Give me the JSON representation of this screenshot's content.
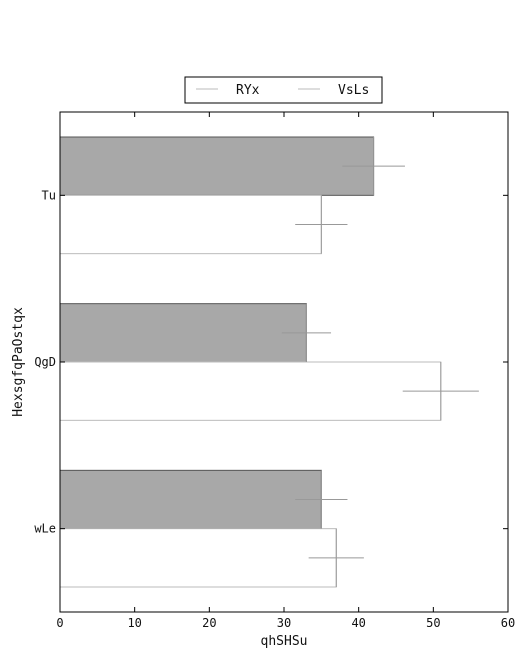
{
  "chart_data": {
    "type": "bar",
    "orientation": "horizontal",
    "title": "",
    "xlabel": "qhSHSu",
    "ylabel": "HexsgfqPaOstqx",
    "categories": [
      "Tu",
      "QgD",
      "wLe"
    ],
    "xlim": [
      0,
      60
    ],
    "xticks": [
      0,
      10,
      20,
      30,
      40,
      50,
      60
    ],
    "grid": false,
    "legend_position": "top-center",
    "series": [
      {
        "name": "RYx",
        "values": [
          42,
          33,
          35
        ],
        "errors": [
          4.2,
          3.3,
          3.5
        ],
        "color": "#a8a8a8"
      },
      {
        "name": "VsLs",
        "values": [
          35,
          51,
          37
        ],
        "errors": [
          3.5,
          5.1,
          3.7
        ],
        "color": "#ffffff"
      }
    ]
  }
}
